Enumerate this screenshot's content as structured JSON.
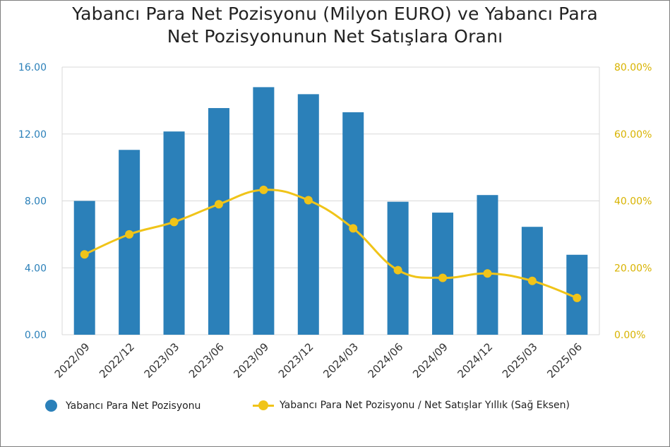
{
  "title_line1": "Yabancı Para Net Pozisyonu (Milyon EURO) ve Yabancı Para",
  "title_line2": "Net Pozisyonunun Net Satışlara Oranı",
  "colors": {
    "bar": "#2b80b9",
    "line": "#f0c419",
    "grid": "#d9d9d9",
    "left_tick": "#2b80b9",
    "right_tick": "#d8b300"
  },
  "legend": {
    "bar_label": "Yabancı Para Net Pozisyonu",
    "line_label": "Yabancı Para Net Pozisyonu / Net Satışlar Yıllık (Sağ Eksen)"
  },
  "chart_data": {
    "type": "bar",
    "categories": [
      "2022/09",
      "2022/12",
      "2023/03",
      "2023/06",
      "2023/09",
      "2023/12",
      "2024/03",
      "2024/06",
      "2024/09",
      "2024/12",
      "2025/03",
      "2025/06"
    ],
    "series": [
      {
        "name": "Yabancı Para Net Pozisyonu",
        "type": "bar",
        "axis": "left",
        "values": [
          8.0,
          11.05,
          12.15,
          13.55,
          14.8,
          14.38,
          13.3,
          7.95,
          7.3,
          8.35,
          6.45,
          4.78
        ]
      },
      {
        "name": "Yabancı Para Net Pozisyonu / Net Satışlar Yıllık (Sağ Eksen)",
        "type": "line",
        "axis": "right",
        "values": [
          24.0,
          30.0,
          33.7,
          39.0,
          43.3,
          40.2,
          31.8,
          19.3,
          17.0,
          18.3,
          16.1,
          11.0
        ]
      }
    ],
    "yleft": {
      "min": 0,
      "max": 16,
      "ticks": [
        "0.00",
        "4.00",
        "8.00",
        "12.00",
        "16.00"
      ]
    },
    "yright": {
      "min": 0,
      "max": 80,
      "ticks": [
        "0.00%",
        "20.00%",
        "40.00%",
        "60.00%",
        "80.00%"
      ]
    },
    "grid": "horizontal",
    "legend_position": "bottom"
  }
}
